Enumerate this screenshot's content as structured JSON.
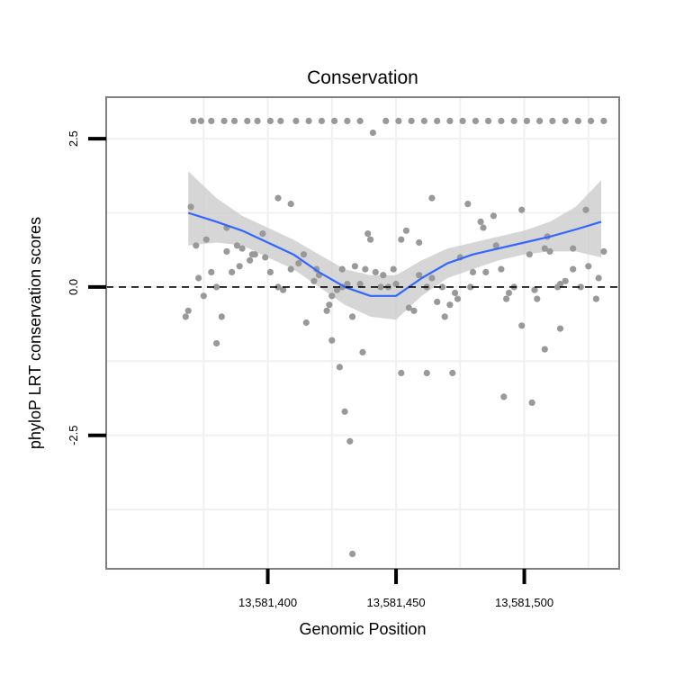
{
  "chart_data": {
    "type": "scatter",
    "title": "Conservation",
    "xlabel": "Genomic Position",
    "ylabel": "phyloP LRT conservation scores",
    "xlim": [
      13581337,
      13581537
    ],
    "ylim": [
      -4.75,
      3.2
    ],
    "x_ticks": [
      {
        "value": 13581400,
        "label": "13,581,400"
      },
      {
        "value": 13581450,
        "label": "13,581,450"
      },
      {
        "value": 13581500,
        "label": "13,581,500"
      }
    ],
    "y_ticks": [
      {
        "value": 2.5,
        "label": "2.5"
      },
      {
        "value": 0,
        "label": "0.0"
      },
      {
        "value": -2.5,
        "label": "-2.5"
      }
    ],
    "reference_line": {
      "y": 0,
      "style": "dashed"
    },
    "colors": {
      "points": "#999999",
      "smooth": "#3366ff",
      "ribbon": "#cccccc",
      "frame": "#7f7f7f",
      "grid": "#f0f0f0"
    },
    "series": [
      {
        "name": "scores",
        "x": [
          13581368,
          13581370,
          13581373,
          13581375,
          13581378,
          13581380,
          13581382,
          13581384,
          13581386,
          13581388,
          13581390,
          13581393,
          13581395,
          13581398,
          13581401,
          13581404,
          13581406,
          13581409,
          13581412,
          13581415,
          13581418,
          13581420,
          13581423,
          13581425,
          13581427,
          13581429,
          13581431,
          13581433,
          13581436,
          13581438,
          13581440,
          13581442,
          13581445,
          13581447,
          13581450,
          13581452,
          13581455,
          13581457,
          13581459,
          13581462,
          13581464,
          13581466,
          13581468,
          13581471,
          13581473,
          13581475,
          13581478,
          13581480,
          13581483,
          13581485,
          13581488,
          13581491,
          13581493,
          13581496,
          13581499,
          13581502,
          13581505,
          13581508,
          13581510,
          13581513,
          13581516,
          13581519,
          13581522,
          13581525,
          13581528,
          13581531,
          13581369,
          13581372,
          13581376,
          13581380,
          13581384,
          13581389,
          13581394,
          13581399,
          13581404,
          13581409,
          13581414,
          13581419,
          13581424,
          13581429,
          13581434,
          13581439,
          13581444,
          13581449,
          13581454,
          13581459,
          13581464,
          13581469,
          13581474,
          13581479,
          13581484,
          13581489,
          13581494,
          13581499,
          13581504,
          13581509,
          13581514,
          13581519,
          13581524,
          13581529,
          13581371,
          13581378,
          13581387,
          13581396,
          13581405,
          13581416,
          13581426,
          13581436,
          13581446,
          13581456,
          13581466,
          13581476,
          13581486,
          13581496,
          13581506,
          13581516,
          13581526,
          13581374,
          13581383,
          13581392,
          13581401,
          13581411,
          13581421,
          13581431,
          13581441,
          13581451,
          13581461,
          13581471,
          13581481,
          13581491,
          13581501,
          13581511,
          13581521,
          13581531,
          13581430,
          13581432,
          13581433,
          13581437,
          13581428,
          13581425,
          13581452,
          13581462,
          13581472,
          13581492,
          13581508,
          13581503,
          13581514
        ],
        "y": [
          -0.5,
          1.35,
          0.15,
          -0.15,
          0.25,
          0.0,
          -0.5,
          0.6,
          0.25,
          0.7,
          0.65,
          0.45,
          0.55,
          0.9,
          0.25,
          1.5,
          -0.05,
          0.3,
          0.4,
          -0.6,
          0.1,
          0.2,
          -0.4,
          -0.15,
          -0.05,
          0.3,
          0.05,
          -0.5,
          0.05,
          0.3,
          0.8,
          0.25,
          0.2,
          0.0,
          0.05,
          0.8,
          -0.35,
          -0.4,
          0.2,
          0.0,
          0.15,
          -0.25,
          0.0,
          -0.3,
          -0.1,
          0.5,
          1.4,
          0.25,
          1.1,
          0.25,
          1.2,
          0.3,
          -0.2,
          0.0,
          -0.65,
          0.55,
          -0.2,
          0.65,
          0.6,
          0.0,
          0.1,
          0.3,
          0.0,
          0.35,
          -0.2,
          0.6,
          -0.4,
          0.7,
          0.8,
          -0.95,
          1.0,
          0.35,
          0.55,
          0.5,
          0.0,
          1.4,
          0.55,
          0.3,
          -0.3,
          0.0,
          0.35,
          0.9,
          0.0,
          0.3,
          0.95,
          0.75,
          1.5,
          -0.5,
          -0.2,
          0.0,
          1.0,
          0.7,
          -0.1,
          1.3,
          -0.05,
          0.85,
          -0.7,
          0.65,
          1.3,
          0.15,
          2.8,
          2.8,
          2.8,
          2.8,
          2.8,
          2.8,
          2.8,
          2.8,
          2.8,
          2.8,
          2.8,
          2.8,
          2.8,
          2.8,
          2.8,
          2.8,
          2.8,
          2.8,
          2.8,
          2.8,
          2.8,
          2.8,
          2.8,
          2.8,
          2.6,
          2.8,
          2.8,
          2.8,
          2.8,
          2.8,
          2.8,
          2.8,
          2.8,
          2.8,
          -2.1,
          -2.6,
          -4.5,
          -1.1,
          -1.35,
          -0.9,
          -1.45,
          -1.45,
          -1.45,
          -1.85,
          -1.05,
          -1.95,
          0.05
        ],
        "color": "#999999"
      },
      {
        "name": "loess fit",
        "x": [
          13581369,
          13581380,
          13581390,
          13581400,
          13581410,
          13581420,
          13581430,
          13581440,
          13581450,
          13581460,
          13581470,
          13581480,
          13581490,
          13581500,
          13581510,
          13581520,
          13581530
        ],
        "y": [
          1.25,
          1.1,
          0.95,
          0.75,
          0.55,
          0.25,
          0.0,
          -0.15,
          -0.15,
          0.15,
          0.4,
          0.55,
          0.65,
          0.75,
          0.85,
          0.97,
          1.1
        ],
        "ribbon_low": [
          0.7,
          0.75,
          0.7,
          0.5,
          0.3,
          0.0,
          -0.3,
          -0.5,
          -0.55,
          -0.15,
          0.15,
          0.3,
          0.45,
          0.55,
          0.6,
          0.6,
          0.5
        ],
        "ribbon_high": [
          1.95,
          1.5,
          1.2,
          1.0,
          0.8,
          0.55,
          0.3,
          0.2,
          0.2,
          0.45,
          0.65,
          0.75,
          0.85,
          0.95,
          1.1,
          1.35,
          1.8
        ],
        "color": "#3366ff"
      }
    ]
  }
}
